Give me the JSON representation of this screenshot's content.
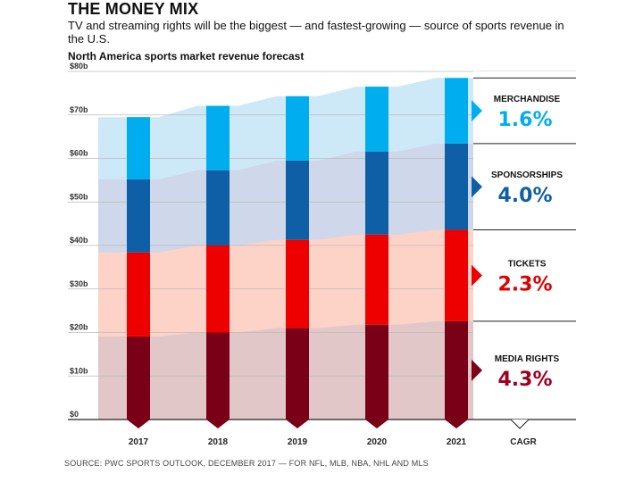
{
  "header": {
    "title": "THE MONEY MIX",
    "subtitle": "TV and streaming rights will be the biggest — and fastest-growing — source of sports revenue in the U.S."
  },
  "source": "SOURCE: PWC SPORTS OUTLOOK, DECEMBER 2017 — FOR NFL, MLB, NBA, NHL AND MLS",
  "chart_data": {
    "type": "bar",
    "stacked": true,
    "title": "North America sports market revenue forecast",
    "categories": [
      "2017",
      "2018",
      "2019",
      "2020",
      "2021"
    ],
    "extra_category": "CAGR",
    "ylim": [
      0,
      80
    ],
    "yticks": [
      "$0",
      "$10b",
      "$20b",
      "$30b",
      "$40b",
      "$50b",
      "$60b",
      "$70b",
      "$80b"
    ],
    "grid": true,
    "series": [
      {
        "name": "MEDIA RIGHTS",
        "cagr": "4.3%",
        "values": [
          19.1,
          20.0,
          21.0,
          21.8,
          22.6
        ],
        "color": "#7a0018",
        "band": "#e2c7c8",
        "label_color": "#a00020"
      },
      {
        "name": "TICKETS",
        "cagr": "2.3%",
        "values": [
          19.3,
          20.0,
          20.3,
          20.7,
          21.0
        ],
        "color": "#ee0000",
        "band": "#fcd3c6",
        "label_color": "#e00000"
      },
      {
        "name": "SPONSORSHIPS",
        "cagr": "4.0%",
        "values": [
          16.8,
          17.3,
          18.2,
          19.1,
          19.8
        ],
        "color": "#0e5fa6",
        "band": "#cfd7ea",
        "label_color": "#0e5fa6"
      },
      {
        "name": "MERCHANDISE",
        "cagr": "1.6%",
        "values": [
          14.3,
          14.8,
          14.8,
          14.9,
          15.1
        ],
        "color": "#00aef0",
        "band": "#cde9f7",
        "label_color": "#00aef0"
      }
    ]
  }
}
